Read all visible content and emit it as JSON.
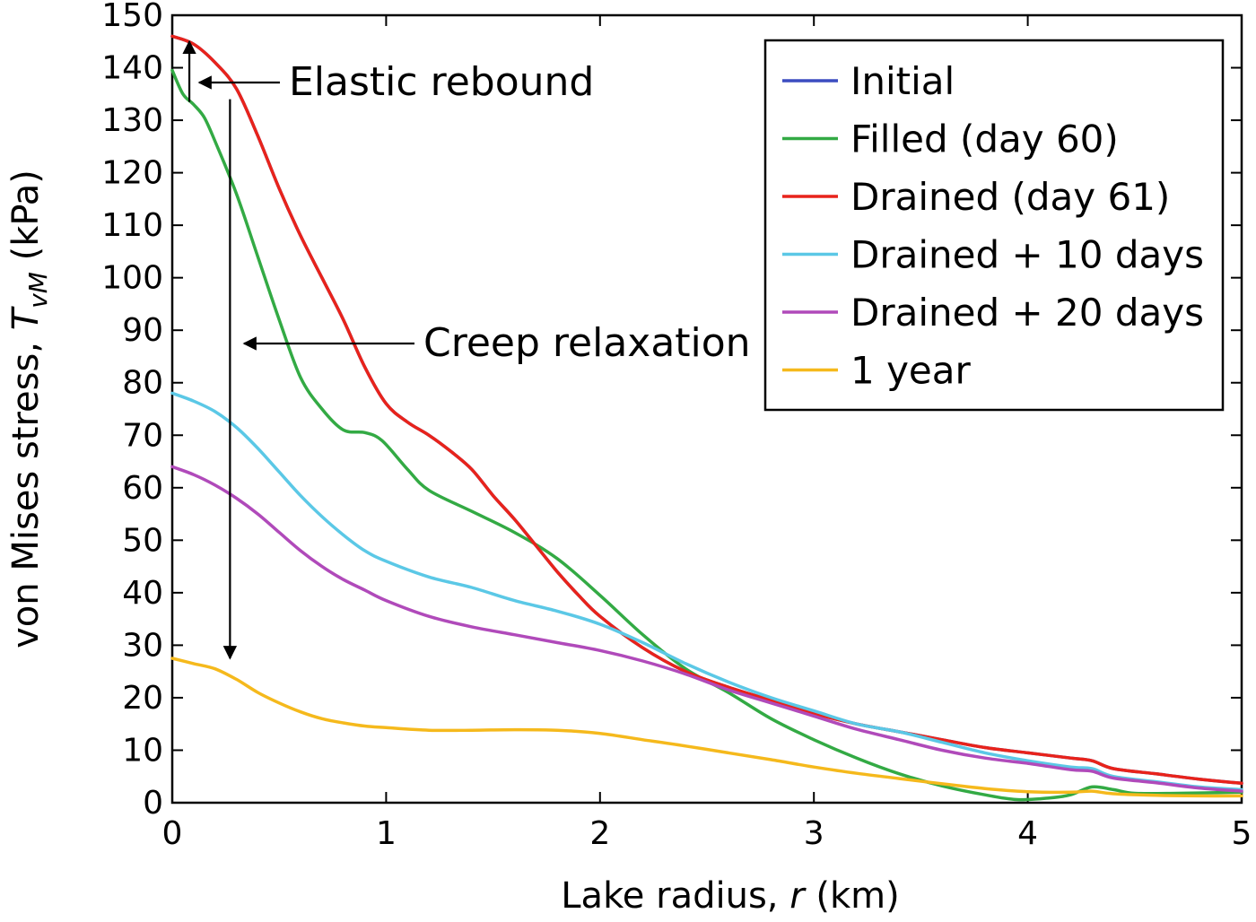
{
  "chart_data": {
    "type": "line",
    "xlabel_prefix": "Lake radius, ",
    "xlabel_var": "r",
    "xlabel_unit": " (km)",
    "ylabel_prefix": "von Mises stress, ",
    "ylabel_var": "T",
    "ylabel_sub": "vM",
    "ylabel_unit": " (kPa)",
    "xlim": [
      0,
      5
    ],
    "ylim": [
      0,
      150
    ],
    "x_ticks": [
      0,
      1,
      2,
      3,
      4,
      5
    ],
    "y_ticks": [
      0,
      10,
      20,
      30,
      40,
      50,
      60,
      70,
      80,
      90,
      100,
      110,
      120,
      130,
      140,
      150
    ],
    "grid": false,
    "legend_position": "top-right",
    "annotations": [
      {
        "text": "Elastic rebound"
      },
      {
        "text": "Creep relaxation"
      }
    ],
    "series": [
      {
        "name": "Initial",
        "color": "#3b4cc0",
        "points": [
          [
            0,
            146
          ],
          [
            0.1,
            144.5
          ],
          [
            0.2,
            141
          ],
          [
            0.3,
            136
          ],
          [
            0.4,
            127
          ],
          [
            0.5,
            117
          ],
          [
            0.6,
            108
          ],
          [
            0.7,
            100
          ],
          [
            0.8,
            92
          ],
          [
            0.9,
            83
          ],
          [
            1.0,
            76
          ],
          [
            1.1,
            72.5
          ],
          [
            1.2,
            70
          ],
          [
            1.3,
            67
          ],
          [
            1.4,
            63.5
          ],
          [
            1.5,
            58.5
          ],
          [
            1.6,
            54
          ],
          [
            1.7,
            49
          ],
          [
            1.8,
            44
          ],
          [
            1.9,
            39.5
          ],
          [
            2.0,
            35.5
          ],
          [
            2.2,
            29.5
          ],
          [
            2.4,
            25
          ],
          [
            2.6,
            22
          ],
          [
            2.8,
            19.5
          ],
          [
            3.0,
            17
          ],
          [
            3.2,
            15
          ],
          [
            3.4,
            13.5
          ],
          [
            3.6,
            12
          ],
          [
            3.8,
            10.5
          ],
          [
            4.0,
            9.5
          ],
          [
            4.2,
            8.5
          ],
          [
            4.3,
            8
          ],
          [
            4.4,
            6.5
          ],
          [
            4.6,
            5.5
          ],
          [
            4.8,
            4.5
          ],
          [
            5.0,
            3.7
          ]
        ]
      },
      {
        "name": "Filled (day 60)",
        "color": "#33aa44",
        "points": [
          [
            0,
            139.5
          ],
          [
            0.05,
            135
          ],
          [
            0.1,
            133
          ],
          [
            0.15,
            130.5
          ],
          [
            0.2,
            126
          ],
          [
            0.3,
            116
          ],
          [
            0.4,
            104
          ],
          [
            0.5,
            92
          ],
          [
            0.6,
            81
          ],
          [
            0.7,
            75
          ],
          [
            0.8,
            71
          ],
          [
            0.9,
            70.5
          ],
          [
            0.98,
            69
          ],
          [
            1.1,
            63.5
          ],
          [
            1.2,
            59.5
          ],
          [
            1.4,
            55.5
          ],
          [
            1.6,
            51.5
          ],
          [
            1.8,
            46.5
          ],
          [
            2.0,
            39.5
          ],
          [
            2.2,
            32
          ],
          [
            2.4,
            25.5
          ],
          [
            2.6,
            21
          ],
          [
            2.8,
            16
          ],
          [
            3.0,
            12
          ],
          [
            3.2,
            8.5
          ],
          [
            3.4,
            5.5
          ],
          [
            3.6,
            3.2
          ],
          [
            3.8,
            1.5
          ],
          [
            3.95,
            0.6
          ],
          [
            4.1,
            0.9
          ],
          [
            4.2,
            1.5
          ],
          [
            4.3,
            3
          ],
          [
            4.4,
            2.5
          ],
          [
            4.5,
            1.8
          ],
          [
            4.7,
            1.8
          ],
          [
            5.0,
            2
          ]
        ]
      },
      {
        "name": "Drained (day 61)",
        "color": "#e8231b",
        "points": [
          [
            0,
            146
          ],
          [
            0.1,
            144.5
          ],
          [
            0.2,
            141
          ],
          [
            0.3,
            136
          ],
          [
            0.4,
            127
          ],
          [
            0.5,
            117
          ],
          [
            0.6,
            108
          ],
          [
            0.7,
            100
          ],
          [
            0.8,
            92
          ],
          [
            0.9,
            83
          ],
          [
            1.0,
            76
          ],
          [
            1.1,
            72.5
          ],
          [
            1.2,
            70
          ],
          [
            1.3,
            67
          ],
          [
            1.4,
            63.5
          ],
          [
            1.5,
            58.5
          ],
          [
            1.6,
            54
          ],
          [
            1.7,
            49
          ],
          [
            1.8,
            44
          ],
          [
            1.9,
            39.5
          ],
          [
            2.0,
            35.5
          ],
          [
            2.2,
            29.5
          ],
          [
            2.4,
            25
          ],
          [
            2.6,
            22
          ],
          [
            2.8,
            19.5
          ],
          [
            3.0,
            17
          ],
          [
            3.2,
            15
          ],
          [
            3.4,
            13.5
          ],
          [
            3.6,
            12
          ],
          [
            3.8,
            10.5
          ],
          [
            4.0,
            9.5
          ],
          [
            4.2,
            8.5
          ],
          [
            4.3,
            8
          ],
          [
            4.4,
            6.5
          ],
          [
            4.6,
            5.5
          ],
          [
            4.8,
            4.5
          ],
          [
            5.0,
            3.7
          ]
        ]
      },
      {
        "name": "Drained + 10 days",
        "color": "#5bc8e6",
        "points": [
          [
            0,
            78
          ],
          [
            0.1,
            76.5
          ],
          [
            0.2,
            74.5
          ],
          [
            0.3,
            71.5
          ],
          [
            0.4,
            67.5
          ],
          [
            0.5,
            63
          ],
          [
            0.6,
            58.5
          ],
          [
            0.7,
            54.5
          ],
          [
            0.8,
            51
          ],
          [
            0.9,
            48
          ],
          [
            1.0,
            46
          ],
          [
            1.2,
            43
          ],
          [
            1.4,
            41
          ],
          [
            1.6,
            38.5
          ],
          [
            1.8,
            36.5
          ],
          [
            2.0,
            34
          ],
          [
            2.2,
            30.5
          ],
          [
            2.4,
            26.5
          ],
          [
            2.6,
            23
          ],
          [
            2.8,
            20
          ],
          [
            3.0,
            17.5
          ],
          [
            3.2,
            15
          ],
          [
            3.4,
            13.5
          ],
          [
            3.6,
            11.5
          ],
          [
            3.8,
            9.5
          ],
          [
            4.0,
            8
          ],
          [
            4.2,
            6.8
          ],
          [
            4.3,
            6.5
          ],
          [
            4.4,
            5
          ],
          [
            4.6,
            4
          ],
          [
            4.8,
            3
          ],
          [
            5.0,
            2.5
          ]
        ]
      },
      {
        "name": "Drained + 20 days",
        "color": "#b04aba",
        "points": [
          [
            0,
            64
          ],
          [
            0.1,
            62.5
          ],
          [
            0.2,
            60.5
          ],
          [
            0.3,
            58
          ],
          [
            0.4,
            55
          ],
          [
            0.5,
            51.5
          ],
          [
            0.6,
            48
          ],
          [
            0.7,
            45
          ],
          [
            0.8,
            42.5
          ],
          [
            0.9,
            40.5
          ],
          [
            1.0,
            38.5
          ],
          [
            1.2,
            35.5
          ],
          [
            1.4,
            33.5
          ],
          [
            1.6,
            32
          ],
          [
            1.8,
            30.5
          ],
          [
            2.0,
            29
          ],
          [
            2.2,
            27
          ],
          [
            2.4,
            24.5
          ],
          [
            2.6,
            21.5
          ],
          [
            2.8,
            19
          ],
          [
            3.0,
            16.5
          ],
          [
            3.2,
            14
          ],
          [
            3.4,
            12
          ],
          [
            3.6,
            10
          ],
          [
            3.8,
            8.5
          ],
          [
            4.0,
            7.5
          ],
          [
            4.2,
            6.3
          ],
          [
            4.3,
            6
          ],
          [
            4.4,
            4.7
          ],
          [
            4.6,
            3.8
          ],
          [
            4.8,
            2.8
          ],
          [
            5.0,
            2.2
          ]
        ]
      },
      {
        "name": "1 year",
        "color": "#f5b91c",
        "points": [
          [
            0,
            27.5
          ],
          [
            0.1,
            26.5
          ],
          [
            0.2,
            25.5
          ],
          [
            0.3,
            23.5
          ],
          [
            0.4,
            21
          ],
          [
            0.5,
            19
          ],
          [
            0.6,
            17.3
          ],
          [
            0.7,
            16
          ],
          [
            0.8,
            15.2
          ],
          [
            0.9,
            14.6
          ],
          [
            1.0,
            14.3
          ],
          [
            1.2,
            13.8
          ],
          [
            1.4,
            13.8
          ],
          [
            1.6,
            13.9
          ],
          [
            1.8,
            13.8
          ],
          [
            2.0,
            13.2
          ],
          [
            2.2,
            12
          ],
          [
            2.4,
            10.8
          ],
          [
            2.6,
            9.5
          ],
          [
            2.8,
            8.2
          ],
          [
            3.0,
            6.8
          ],
          [
            3.2,
            5.6
          ],
          [
            3.4,
            4.6
          ],
          [
            3.6,
            3.6
          ],
          [
            3.8,
            2.7
          ],
          [
            4.0,
            2.1
          ],
          [
            4.2,
            2
          ],
          [
            4.3,
            2.2
          ],
          [
            4.4,
            1.7
          ],
          [
            4.6,
            1.4
          ],
          [
            4.8,
            1.3
          ],
          [
            5.0,
            1.3
          ]
        ]
      }
    ]
  }
}
